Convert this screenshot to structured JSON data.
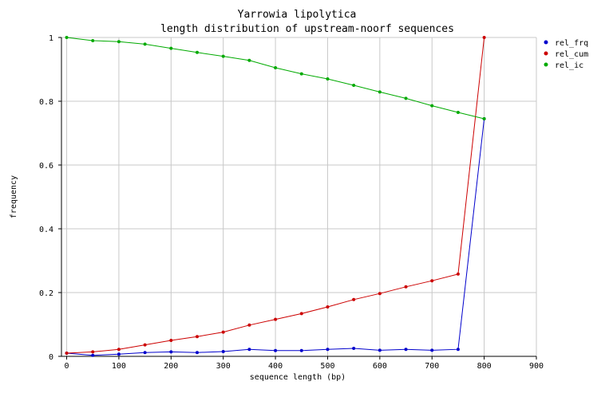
{
  "chart_data": {
    "type": "line",
    "title": "Yarrowia lipolytica",
    "subtitle": "length distribution of upstream-noorf sequences",
    "xlabel": "sequence length (bp)",
    "ylabel": "frequency",
    "xlim": [
      -10,
      900
    ],
    "ylim": [
      0,
      1
    ],
    "xticks": [
      0,
      100,
      200,
      300,
      400,
      500,
      600,
      700,
      800,
      900
    ],
    "yticks": [
      0,
      0.2,
      0.4,
      0.6,
      0.8,
      1
    ],
    "ytick_labels": [
      "0",
      "0.2",
      "0.4",
      "0.6",
      "0.8",
      "1"
    ],
    "grid": true,
    "legend_position": "right",
    "x": [
      0,
      50,
      100,
      150,
      200,
      250,
      300,
      350,
      400,
      450,
      500,
      550,
      600,
      650,
      700,
      750,
      800
    ],
    "series": [
      {
        "name": "rel_frq",
        "color": "#0000cc",
        "values": [
          0.01,
          0.003,
          0.007,
          0.012,
          0.014,
          0.012,
          0.015,
          0.022,
          0.018,
          0.018,
          0.022,
          0.025,
          0.019,
          0.022,
          0.019,
          0.022,
          0.745
        ]
      },
      {
        "name": "rel_cum",
        "color": "#cc0000",
        "values": [
          0.01,
          0.014,
          0.022,
          0.036,
          0.05,
          0.062,
          0.076,
          0.098,
          0.116,
          0.134,
          0.155,
          0.178,
          0.197,
          0.218,
          0.237,
          0.258,
          1.0
        ]
      },
      {
        "name": "rel_ic",
        "color": "#00aa00",
        "values": [
          1.0,
          0.99,
          0.987,
          0.979,
          0.966,
          0.953,
          0.941,
          0.928,
          0.905,
          0.886,
          0.87,
          0.85,
          0.829,
          0.809,
          0.786,
          0.765,
          0.745
        ]
      }
    ]
  }
}
